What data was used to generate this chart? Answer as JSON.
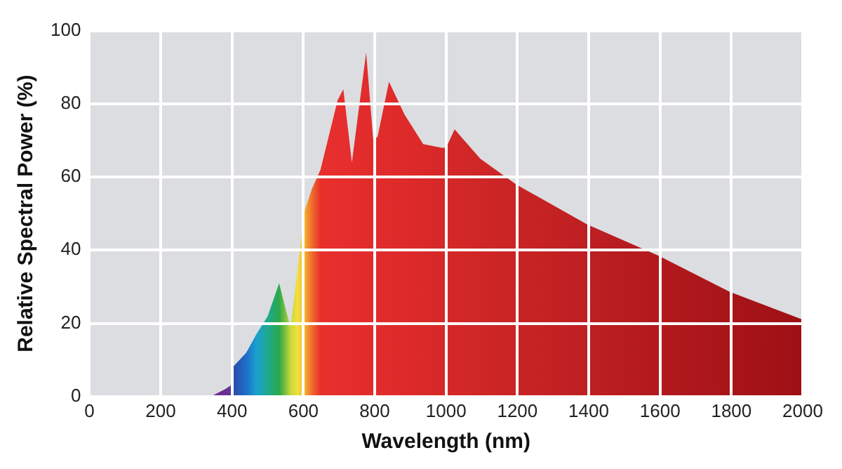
{
  "chart_data": {
    "type": "area",
    "xlabel": "Wavelength (nm)",
    "ylabel": "Relative Spectral Power (%)",
    "xlim": [
      0,
      2000
    ],
    "xticks": [
      0,
      200,
      400,
      600,
      800,
      1000,
      1200,
      1400,
      1600,
      1800,
      2000
    ],
    "ylim": [
      0,
      100
    ],
    "yticks": [
      0,
      20,
      40,
      60,
      80,
      100
    ],
    "grid": true,
    "legend": false,
    "series": [
      {
        "x": [
          340,
          380,
          396,
          402,
          440,
          468,
          500,
          532,
          550,
          564,
          584,
          604,
          625,
          648,
          696,
          712,
          736,
          776,
          796,
          808,
          840,
          884,
          936,
          988,
          1000,
          1024,
          1096,
          1196,
          1396,
          1596,
          1796,
          2000
        ],
        "values": [
          0,
          2,
          3,
          8,
          12,
          17,
          22,
          31,
          24,
          19,
          35,
          51,
          57,
          62,
          81,
          84,
          64,
          94,
          70,
          71,
          86,
          77,
          69,
          68,
          68,
          73,
          65,
          58,
          47,
          38.5,
          28.6,
          21
        ],
        "colors": [
          "#6a2c91",
          "#6a2c91",
          "#5a3a9a",
          "#2a4aa8",
          "#1e6ec8",
          "#1aa0d0",
          "#20a890",
          "#2aa84a",
          "#80c040",
          "#c8d83a",
          "#f0e040",
          "#f5b030",
          "#ee6a2c",
          "#e8302a",
          "#e62e2e",
          "#e62e2e",
          "#e42d2d",
          "#e22c2c",
          "#e22c2c",
          "#e22c2c",
          "#e02b2b",
          "#de2a2a",
          "#da2929",
          "#d62828",
          "#d52828",
          "#d32828",
          "#cf2626",
          "#c92424",
          "#be1f22",
          "#b2191d",
          "#a81519",
          "#9e1015"
        ]
      }
    ]
  }
}
